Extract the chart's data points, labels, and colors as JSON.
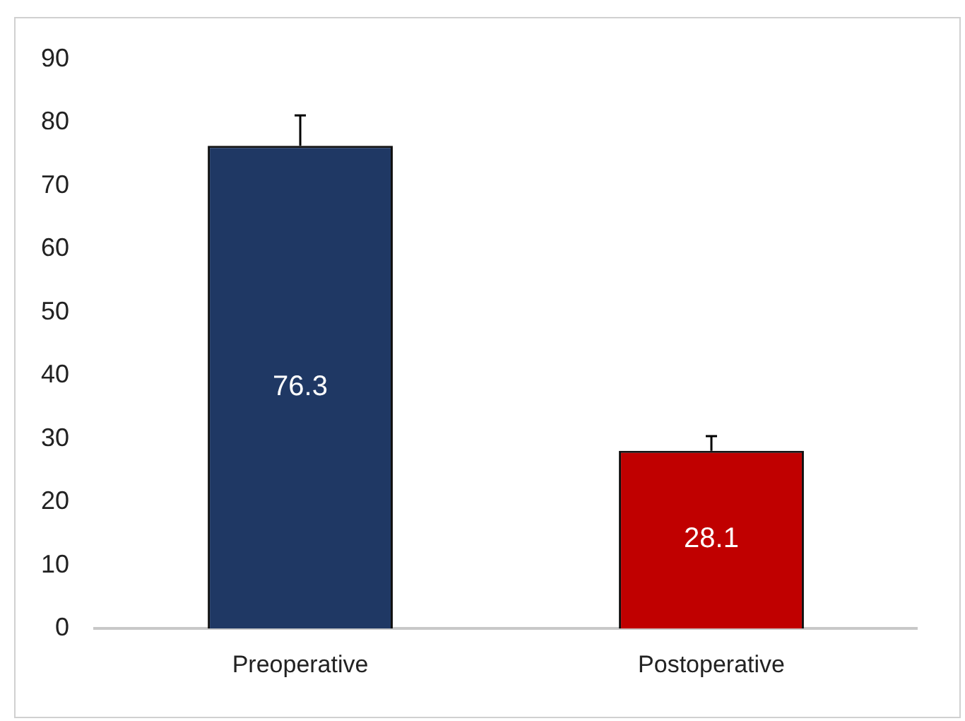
{
  "chart_data": {
    "type": "bar",
    "categories": [
      "Preoperative",
      "Postoperative"
    ],
    "values": [
      76.3,
      28.1
    ],
    "colors": [
      "#1f3864",
      "#c00000"
    ],
    "errors": [
      [
        76.3,
        81.1
      ],
      [
        28.1,
        30.4
      ]
    ],
    "data_labels": true,
    "ylim": [
      0,
      90
    ],
    "yticks": [
      0,
      10,
      20,
      30,
      40,
      50,
      60,
      70,
      80,
      90
    ],
    "grid": false,
    "legend": false
  }
}
